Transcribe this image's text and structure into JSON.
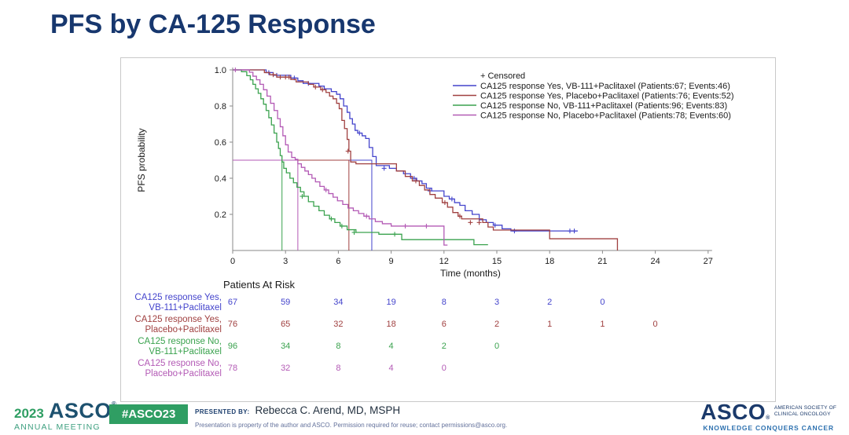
{
  "title": "PFS by CA-125 Response",
  "title_color": "#17376e",
  "chart_data": {
    "type": "line",
    "subtype": "kaplan-meier-step",
    "xlabel": "Time (months)",
    "ylabel": "PFS probability",
    "xlim": [
      0,
      27
    ],
    "ylim": [
      0,
      1.0
    ],
    "x_ticks": [
      0,
      3,
      6,
      9,
      12,
      15,
      18,
      21,
      24,
      27
    ],
    "y_ticks": [
      0.2,
      0.4,
      0.6,
      0.8,
      1.0
    ],
    "grid": false,
    "legend_position": "top-right-inside",
    "censored_label": "+ Censored",
    "median_draw_order": [
      0,
      2,
      1,
      3
    ],
    "series": [
      {
        "name": "CA125 response Yes, VB-111+Paclitaxel (Patients:67; Events:46)",
        "color": "#4444cc",
        "median_months": 7.9,
        "points": [
          [
            0,
            1.0
          ],
          [
            1.9,
            0.985
          ],
          [
            2.3,
            0.97
          ],
          [
            3.3,
            0.955
          ],
          [
            3.7,
            0.94
          ],
          [
            4.0,
            0.925
          ],
          [
            4.9,
            0.91
          ],
          [
            5.2,
            0.895
          ],
          [
            5.6,
            0.88
          ],
          [
            5.9,
            0.865
          ],
          [
            6.1,
            0.84
          ],
          [
            6.3,
            0.8
          ],
          [
            6.5,
            0.765
          ],
          [
            6.65,
            0.73
          ],
          [
            6.8,
            0.7
          ],
          [
            6.95,
            0.665
          ],
          [
            7.1,
            0.65
          ],
          [
            7.35,
            0.635
          ],
          [
            7.55,
            0.62
          ],
          [
            7.75,
            0.57
          ],
          [
            7.95,
            0.52
          ],
          [
            8.15,
            0.47
          ],
          [
            8.9,
            0.455
          ],
          [
            9.3,
            0.44
          ],
          [
            9.7,
            0.425
          ],
          [
            10.1,
            0.4
          ],
          [
            10.45,
            0.385
          ],
          [
            10.75,
            0.37
          ],
          [
            11.0,
            0.345
          ],
          [
            11.3,
            0.33
          ],
          [
            12.0,
            0.3
          ],
          [
            12.3,
            0.285
          ],
          [
            12.6,
            0.265
          ],
          [
            12.9,
            0.25
          ],
          [
            13.2,
            0.22
          ],
          [
            13.6,
            0.2
          ],
          [
            14.0,
            0.17
          ],
          [
            14.4,
            0.155
          ],
          [
            14.8,
            0.14
          ],
          [
            15.3,
            0.12
          ],
          [
            15.8,
            0.108
          ],
          [
            19.6,
            0.108
          ]
        ],
        "censor_marks": [
          [
            2.05,
            0.985
          ],
          [
            2.5,
            0.97
          ],
          [
            3.5,
            0.955
          ],
          [
            4.3,
            0.925
          ],
          [
            7.2,
            0.65
          ],
          [
            8.6,
            0.455
          ],
          [
            10.3,
            0.4
          ],
          [
            11.2,
            0.33
          ],
          [
            12.45,
            0.285
          ],
          [
            14.9,
            0.14
          ],
          [
            16.0,
            0.108
          ],
          [
            19.15,
            0.108
          ],
          [
            19.4,
            0.108
          ]
        ]
      },
      {
        "name": "CA125 response Yes, Placebo+Paclitaxel (Patients:76; Events:52)",
        "color": "#a04040",
        "median_months": 6.6,
        "points": [
          [
            0,
            1.0
          ],
          [
            1.8,
            0.985
          ],
          [
            2.1,
            0.973
          ],
          [
            2.5,
            0.96
          ],
          [
            3.3,
            0.947
          ],
          [
            3.6,
            0.933
          ],
          [
            4.3,
            0.92
          ],
          [
            4.6,
            0.905
          ],
          [
            5.0,
            0.89
          ],
          [
            5.3,
            0.875
          ],
          [
            5.5,
            0.855
          ],
          [
            5.7,
            0.84
          ],
          [
            5.9,
            0.815
          ],
          [
            6.05,
            0.785
          ],
          [
            6.2,
            0.72
          ],
          [
            6.35,
            0.675
          ],
          [
            6.5,
            0.615
          ],
          [
            6.6,
            0.55
          ],
          [
            6.7,
            0.49
          ],
          [
            7.0,
            0.48
          ],
          [
            9.3,
            0.44
          ],
          [
            9.8,
            0.41
          ],
          [
            10.2,
            0.385
          ],
          [
            10.6,
            0.36
          ],
          [
            10.9,
            0.335
          ],
          [
            11.2,
            0.31
          ],
          [
            11.5,
            0.29
          ],
          [
            11.9,
            0.265
          ],
          [
            12.2,
            0.24
          ],
          [
            12.5,
            0.21
          ],
          [
            12.8,
            0.19
          ],
          [
            13.0,
            0.175
          ],
          [
            14.2,
            0.155
          ],
          [
            14.5,
            0.13
          ],
          [
            14.8,
            0.113
          ],
          [
            18.0,
            0.065
          ],
          [
            21.85,
            0.065
          ],
          [
            21.85,
            0.0
          ]
        ],
        "censor_marks": [
          [
            2.3,
            0.973
          ],
          [
            2.7,
            0.96
          ],
          [
            3.0,
            0.96
          ],
          [
            3.2,
            0.96
          ],
          [
            4.7,
            0.905
          ],
          [
            5.1,
            0.89
          ],
          [
            6.55,
            0.55
          ],
          [
            10.4,
            0.385
          ],
          [
            12.05,
            0.265
          ],
          [
            12.9,
            0.19
          ],
          [
            13.5,
            0.155
          ],
          [
            14.0,
            0.155
          ]
        ]
      },
      {
        "name": "CA125 response No, VB-111+Paclitaxel (Patients:96; Events:83)",
        "color": "#3aa24e",
        "median_months": 2.8,
        "points": [
          [
            0,
            1.0
          ],
          [
            0.5,
            0.99
          ],
          [
            0.8,
            0.968
          ],
          [
            1.0,
            0.945
          ],
          [
            1.15,
            0.92
          ],
          [
            1.3,
            0.895
          ],
          [
            1.45,
            0.87
          ],
          [
            1.6,
            0.84
          ],
          [
            1.75,
            0.81
          ],
          [
            1.9,
            0.775
          ],
          [
            2.05,
            0.735
          ],
          [
            2.2,
            0.695
          ],
          [
            2.35,
            0.65
          ],
          [
            2.5,
            0.6
          ],
          [
            2.6,
            0.565
          ],
          [
            2.7,
            0.525
          ],
          [
            2.8,
            0.49
          ],
          [
            2.9,
            0.455
          ],
          [
            3.05,
            0.43
          ],
          [
            3.25,
            0.4
          ],
          [
            3.45,
            0.375
          ],
          [
            3.65,
            0.35
          ],
          [
            3.85,
            0.325
          ],
          [
            4.05,
            0.3
          ],
          [
            4.3,
            0.27
          ],
          [
            4.6,
            0.245
          ],
          [
            4.9,
            0.22
          ],
          [
            5.2,
            0.195
          ],
          [
            5.5,
            0.175
          ],
          [
            5.8,
            0.155
          ],
          [
            6.1,
            0.135
          ],
          [
            6.5,
            0.115
          ],
          [
            7.0,
            0.1
          ],
          [
            8.3,
            0.09
          ],
          [
            9.6,
            0.06
          ],
          [
            13.6,
            0.06
          ],
          [
            13.7,
            0.032
          ],
          [
            14.5,
            0.032
          ]
        ],
        "censor_marks": [
          [
            3.95,
            0.3
          ],
          [
            5.6,
            0.175
          ],
          [
            6.2,
            0.135
          ],
          [
            6.9,
            0.1
          ],
          [
            9.2,
            0.09
          ]
        ]
      },
      {
        "name": "CA125 response No, Placebo+Paclitaxel (Patients:78; Events:60)",
        "color": "#b35ab5",
        "median_months": 3.7,
        "points": [
          [
            0,
            1.0
          ],
          [
            0.95,
            0.987
          ],
          [
            1.15,
            0.965
          ],
          [
            1.35,
            0.945
          ],
          [
            1.55,
            0.92
          ],
          [
            1.75,
            0.89
          ],
          [
            1.95,
            0.855
          ],
          [
            2.15,
            0.815
          ],
          [
            2.35,
            0.775
          ],
          [
            2.55,
            0.73
          ],
          [
            2.7,
            0.685
          ],
          [
            2.85,
            0.635
          ],
          [
            3.0,
            0.585
          ],
          [
            3.15,
            0.545
          ],
          [
            3.35,
            0.515
          ],
          [
            3.55,
            0.505
          ],
          [
            3.7,
            0.48
          ],
          [
            3.9,
            0.46
          ],
          [
            4.1,
            0.44
          ],
          [
            4.3,
            0.42
          ],
          [
            4.5,
            0.4
          ],
          [
            4.7,
            0.38
          ],
          [
            4.95,
            0.355
          ],
          [
            5.2,
            0.335
          ],
          [
            5.45,
            0.315
          ],
          [
            5.7,
            0.295
          ],
          [
            5.95,
            0.275
          ],
          [
            6.25,
            0.255
          ],
          [
            6.55,
            0.235
          ],
          [
            6.85,
            0.22
          ],
          [
            7.15,
            0.205
          ],
          [
            7.45,
            0.19
          ],
          [
            7.75,
            0.175
          ],
          [
            8.1,
            0.16
          ],
          [
            8.5,
            0.148
          ],
          [
            9.0,
            0.135
          ],
          [
            12.0,
            0.03
          ],
          [
            12.2,
            0.03
          ]
        ],
        "censor_marks": [
          [
            0.15,
            1.0
          ],
          [
            5.3,
            0.335
          ],
          [
            7.6,
            0.19
          ],
          [
            9.8,
            0.135
          ],
          [
            11.0,
            0.135
          ]
        ]
      }
    ],
    "at_risk": {
      "title": "Patients At Risk",
      "times": [
        0,
        3,
        6,
        9,
        12,
        15,
        18,
        21,
        24
      ],
      "rows": [
        {
          "label_lines": [
            "CA125 response Yes,",
            "VB-111+Paclitaxel"
          ],
          "color": "#4444cc",
          "counts": [
            67,
            59,
            34,
            19,
            8,
            3,
            2,
            0
          ]
        },
        {
          "label_lines": [
            "CA125 response Yes,",
            "Placebo+Paclitaxel"
          ],
          "color": "#a04040",
          "counts": [
            76,
            65,
            32,
            18,
            6,
            2,
            1,
            1,
            0
          ]
        },
        {
          "label_lines": [
            "CA125 response No,",
            "VB-111+Paclitaxel"
          ],
          "color": "#3aa24e",
          "counts": [
            96,
            34,
            8,
            4,
            2,
            0
          ]
        },
        {
          "label_lines": [
            "CA125 response No,",
            "Placebo+Paclitaxel"
          ],
          "color": "#b35ab5",
          "counts": [
            78,
            32,
            8,
            4,
            0
          ]
        }
      ]
    }
  },
  "footer": {
    "year": "2023",
    "logo_word": "ASCO",
    "logo_sub": "ANNUAL MEETING",
    "hashtag": "#ASCO23",
    "badge_color": "#2f9e63",
    "presented_by_label": "PRESENTED BY:",
    "presenter": "Rebecca C. Arend, MD, MSPH",
    "disclaimer": "Presentation is property of the author and ASCO. Permission required for reuse; contact permissions@asco.org.",
    "right_logo_word": "ASCO",
    "right_logo_lines": [
      "AMERICAN SOCIETY OF",
      "CLINICAL ONCOLOGY"
    ],
    "right_tagline": "KNOWLEDGE CONQUERS CANCER"
  }
}
